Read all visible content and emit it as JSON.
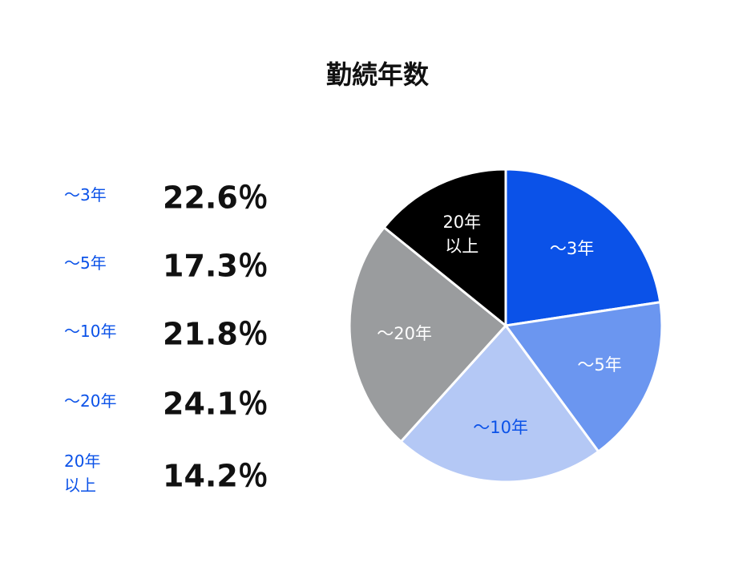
{
  "chart_data": {
    "type": "pie",
    "title": "勤続年数",
    "categories": [
      "～3年",
      "～5年",
      "～10年",
      "～20年",
      "20年\n以上"
    ],
    "values": [
      22.6,
      17.3,
      21.8,
      24.1,
      14.2
    ],
    "value_labels": [
      "22.6％",
      "17.3％",
      "21.8％",
      "24.1％",
      "14.2％"
    ],
    "colors": [
      "#0b52e8",
      "#6b96f0",
      "#b4c8f5",
      "#9a9c9e",
      "#000000"
    ]
  }
}
